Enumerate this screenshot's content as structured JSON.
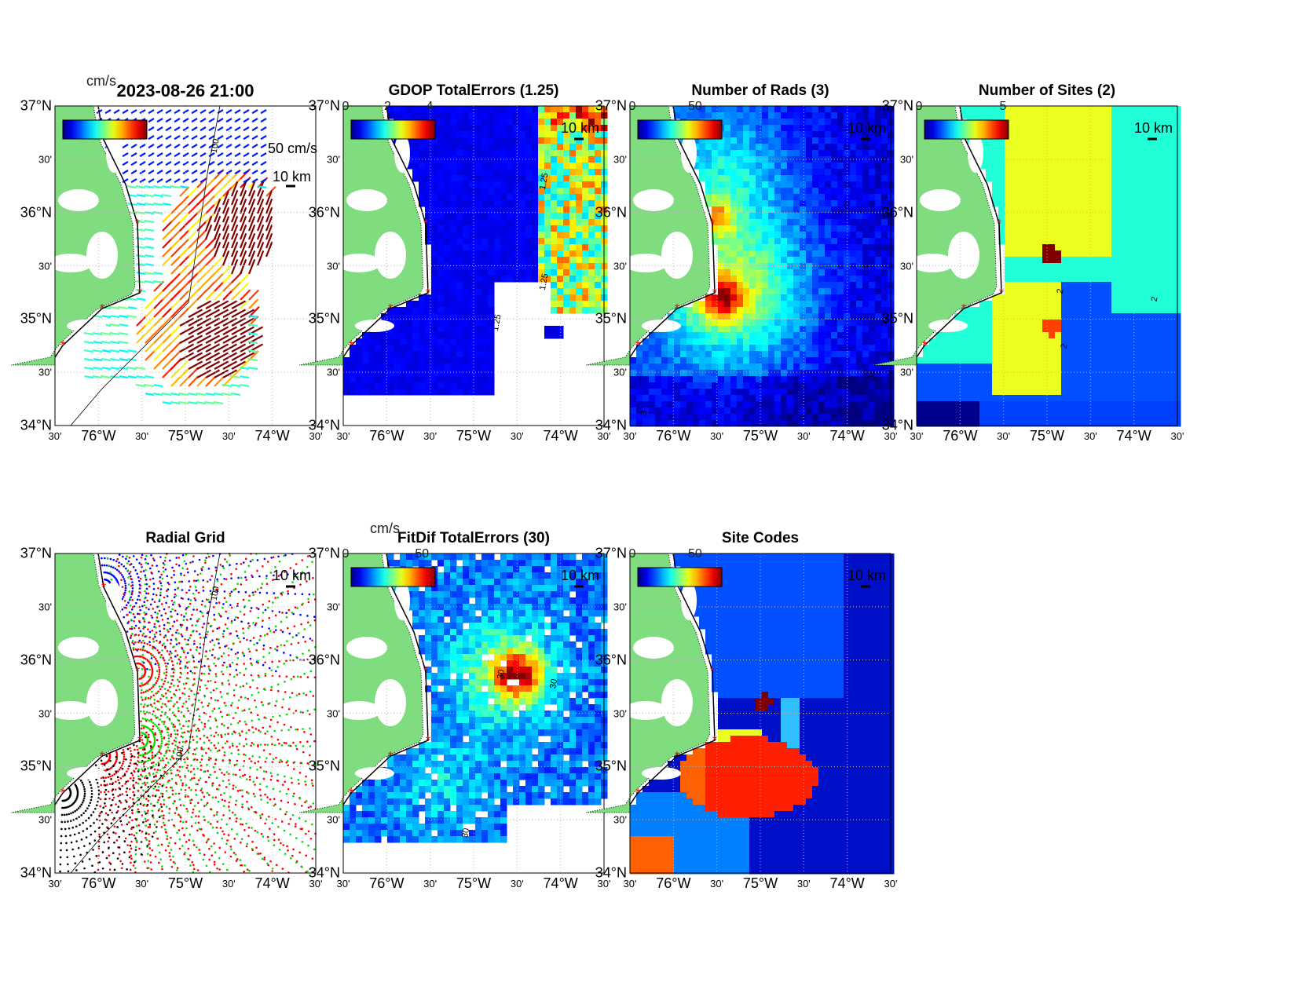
{
  "axes": {
    "lat_labels": [
      "37°N",
      "30'",
      "36°N",
      "30'",
      "35°N",
      "30'",
      "34°N"
    ],
    "lon_labels": [
      "30'",
      "76°W",
      "30'",
      "75°W",
      "30'",
      "74°W",
      "30'"
    ]
  },
  "colors": {
    "land": "#7fdc7f",
    "site_marker": "#ff0000",
    "grid": "#bbbbbb"
  },
  "chart_data": [
    {
      "type": "vector-map",
      "id": "velocity",
      "title": "2023-08-26 21:00",
      "cbar_label": "cm/s",
      "cbar_ticks": [],
      "scale_labels": [
        "50 cm/s",
        "10 km"
      ],
      "contour_labels": [
        "100"
      ],
      "xlim": [
        "76°30'W",
        "73°30'W"
      ],
      "ylim": [
        "34°N",
        "37°N"
      ]
    },
    {
      "type": "heatmap",
      "id": "gdop",
      "title": "GDOP TotalErrors (1.25)",
      "cbar_ticks": [
        "0",
        "2",
        "4"
      ],
      "cbar_range": [
        0,
        4
      ],
      "scale_labels": [
        "10 km"
      ],
      "contour_labels": [
        "1.25",
        "1.25",
        "1.25"
      ]
    },
    {
      "type": "heatmap",
      "id": "nrads",
      "title": "Number of Rads (3)",
      "cbar_ticks": [
        "0",
        "50"
      ],
      "cbar_range": [
        0,
        67
      ],
      "scale_labels": [
        "10 km"
      ],
      "contour_labels": [
        "3",
        "3"
      ]
    },
    {
      "type": "heatmap",
      "id": "nsites",
      "title": "Number of Sites (2)",
      "cbar_ticks": [
        "0",
        "5"
      ],
      "cbar_range": [
        0,
        5
      ],
      "scale_labels": [
        "10 km"
      ],
      "contour_labels": [
        "2",
        "2",
        "2"
      ]
    },
    {
      "type": "scatter-map",
      "id": "radial",
      "title": "Radial Grid",
      "cbar_ticks": [],
      "scale_labels": [
        "10 km"
      ],
      "contour_labels": [
        "100",
        "100"
      ]
    },
    {
      "type": "heatmap",
      "id": "fitdif",
      "title": "FitDif TotalErrors (30)",
      "cbar_label": "cm/s",
      "cbar_ticks": [
        "0",
        "50"
      ],
      "cbar_range": [
        0,
        55
      ],
      "scale_labels": [
        "10 km"
      ],
      "contour_labels": [
        "30",
        "30",
        "30"
      ]
    },
    {
      "type": "heatmap",
      "id": "sitecodes",
      "title": "Site Codes",
      "cbar_ticks": [
        "0",
        "50"
      ],
      "cbar_range": [
        0,
        67
      ],
      "scale_labels": [
        "10 km"
      ],
      "contour_labels": []
    }
  ]
}
